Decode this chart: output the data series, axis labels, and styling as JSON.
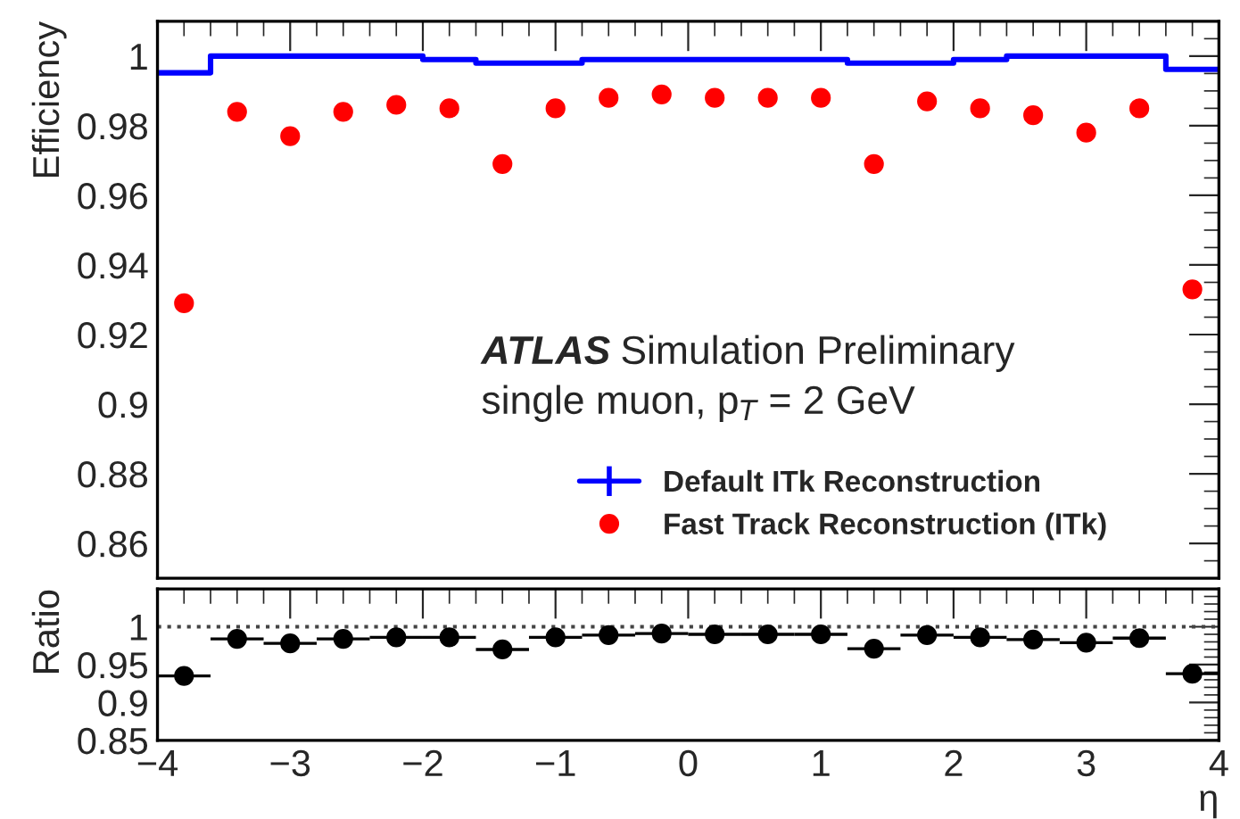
{
  "chart_data": [
    {
      "type": "scatter",
      "ylabel": "Efficiency",
      "x": [
        -3.8,
        -3.4,
        -3.0,
        -2.6,
        -2.2,
        -1.8,
        -1.4,
        -1.0,
        -0.6,
        -0.2,
        0.2,
        0.6,
        1.0,
        1.4,
        1.8,
        2.2,
        2.6,
        3.0,
        3.4,
        3.8
      ],
      "series": [
        {
          "name": "Default ITk Reconstruction",
          "type": "step",
          "color": "#0000ff",
          "x": [
            -4.0,
            -3.6,
            -3.2,
            -2.8,
            -2.4,
            -2.0,
            -1.6,
            -1.2,
            -0.8,
            -0.4,
            0.0,
            0.4,
            0.8,
            1.2,
            1.6,
            2.0,
            2.4,
            2.8,
            3.2,
            3.6,
            4.0
          ],
          "values": [
            0.9952,
            1.0,
            1.0,
            1.0,
            1.0,
            0.999,
            0.998,
            0.998,
            0.999,
            0.999,
            0.999,
            0.999,
            0.999,
            0.998,
            0.998,
            0.999,
            1.0,
            1.0,
            1.0,
            0.9962,
            0.9962
          ]
        },
        {
          "name": "Fast Track Reconstruction (ITk)",
          "type": "scatter",
          "color": "#ff0000",
          "marker": "circle",
          "values": [
            0.929,
            0.984,
            0.977,
            0.984,
            0.986,
            0.985,
            0.969,
            0.985,
            0.988,
            0.989,
            0.988,
            0.988,
            0.988,
            0.969,
            0.987,
            0.985,
            0.983,
            0.978,
            0.985,
            0.933
          ],
          "errors": [
            0.002,
            0.001,
            0.001,
            0.001,
            0.001,
            0.001,
            0.001,
            0.001,
            0.001,
            0.001,
            0.001,
            0.001,
            0.001,
            0.001,
            0.001,
            0.001,
            0.001,
            0.001,
            0.001,
            0.002
          ]
        }
      ],
      "xlim": [
        -4,
        4
      ],
      "xticks": [
        -4,
        -3,
        -2,
        -1,
        0,
        1,
        2,
        3,
        4
      ],
      "ylim": [
        0.85,
        1.01
      ],
      "yticks": [
        0.86,
        0.88,
        0.9,
        0.92,
        0.94,
        0.96,
        0.98,
        1
      ],
      "tick_labels": "y",
      "legend": "bottom right",
      "grid": false,
      "annotations": [
        "ATLAS",
        "Simulation Preliminary",
        "single muon, p$_{T}$ = 2 GeV"
      ]
    },
    {
      "type": "scatter",
      "ylabel": "Ratio",
      "xlabel": "η",
      "x": [
        -3.8,
        -3.4,
        -3.0,
        -2.6,
        -2.2,
        -1.8,
        -1.4,
        -1.0,
        -0.6,
        -0.2,
        0.2,
        0.6,
        1.0,
        1.4,
        1.8,
        2.2,
        2.6,
        3.0,
        3.4,
        3.8
      ],
      "series": [
        {
          "color": "#000000",
          "marker": "circle",
          "values": [
            0.935,
            0.984,
            0.978,
            0.984,
            0.986,
            0.986,
            0.97,
            0.986,
            0.989,
            0.991,
            0.99,
            0.99,
            0.99,
            0.971,
            0.989,
            0.986,
            0.983,
            0.979,
            0.985,
            0.938
          ],
          "xerrors": [
            0.2,
            0.2,
            0.2,
            0.2,
            0.2,
            0.2,
            0.2,
            0.2,
            0.2,
            0.2,
            0.2,
            0.2,
            0.2,
            0.2,
            0.2,
            0.2,
            0.2,
            0.2,
            0.2,
            0.2
          ]
        }
      ],
      "xlim": [
        -4,
        4
      ],
      "xticks": [
        {
          "value": -4,
          "label": "−4"
        },
        {
          "value": -3,
          "label": "−3"
        },
        {
          "value": -2,
          "label": "−2"
        },
        {
          "value": -1,
          "label": "−1"
        },
        0,
        1,
        2,
        3,
        4
      ],
      "ylim": [
        0.85,
        1.05
      ],
      "yticks": [
        0.85,
        0.9,
        0.95,
        1
      ],
      "grid": false,
      "ref_lines": [
        {
          "axis": "y",
          "value": 1,
          "line_style": "dotted",
          "color": "#444444"
        }
      ]
    }
  ]
}
